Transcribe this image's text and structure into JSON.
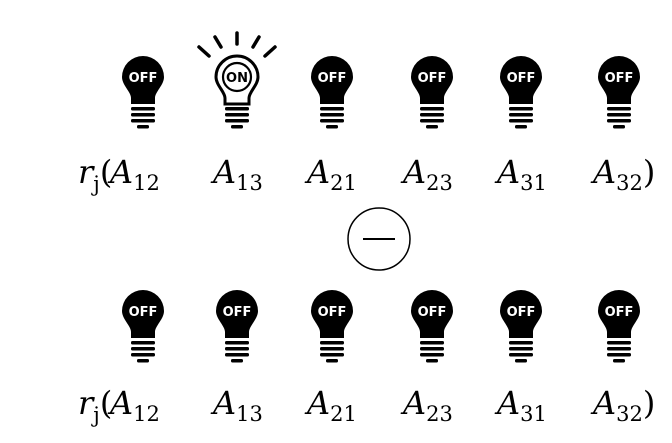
{
  "colors": {
    "bulb_off_fill": "#000000",
    "bulb_off_text": "#ffffff",
    "bulb_on_fill": "#ffffff",
    "bulb_on_stroke": "#000000",
    "bulb_on_text": "#000000",
    "operator_stroke": "#000000"
  },
  "operator": {
    "symbol": "minus",
    "icon": "circled-minus-icon"
  },
  "rows": [
    {
      "function_symbol": "r",
      "function_subscript": "j",
      "open_paren": "(",
      "close_paren": ")",
      "bulbs": [
        {
          "base": "A",
          "subscript": "12",
          "state_label": "OFF",
          "on": false,
          "icon": "lightbulb-off-icon"
        },
        {
          "base": "A",
          "subscript": "13",
          "state_label": "ON",
          "on": true,
          "icon": "lightbulb-on-icon"
        },
        {
          "base": "A",
          "subscript": "21",
          "state_label": "OFF",
          "on": false,
          "icon": "lightbulb-off-icon"
        },
        {
          "base": "A",
          "subscript": "23",
          "state_label": "OFF",
          "on": false,
          "icon": "lightbulb-off-icon"
        },
        {
          "base": "A",
          "subscript": "31",
          "state_label": "OFF",
          "on": false,
          "icon": "lightbulb-off-icon"
        },
        {
          "base": "A",
          "subscript": "32",
          "state_label": "OFF",
          "on": false,
          "icon": "lightbulb-off-icon"
        }
      ]
    },
    {
      "function_symbol": "r",
      "function_subscript": "j",
      "open_paren": "(",
      "close_paren": ")",
      "bulbs": [
        {
          "base": "A",
          "subscript": "12",
          "state_label": "OFF",
          "on": false,
          "icon": "lightbulb-off-icon"
        },
        {
          "base": "A",
          "subscript": "13",
          "state_label": "OFF",
          "on": false,
          "icon": "lightbulb-off-icon"
        },
        {
          "base": "A",
          "subscript": "21",
          "state_label": "OFF",
          "on": false,
          "icon": "lightbulb-off-icon"
        },
        {
          "base": "A",
          "subscript": "23",
          "state_label": "OFF",
          "on": false,
          "icon": "lightbulb-off-icon"
        },
        {
          "base": "A",
          "subscript": "31",
          "state_label": "OFF",
          "on": false,
          "icon": "lightbulb-off-icon"
        },
        {
          "base": "A",
          "subscript": "32",
          "state_label": "OFF",
          "on": false,
          "icon": "lightbulb-off-icon"
        }
      ]
    }
  ]
}
